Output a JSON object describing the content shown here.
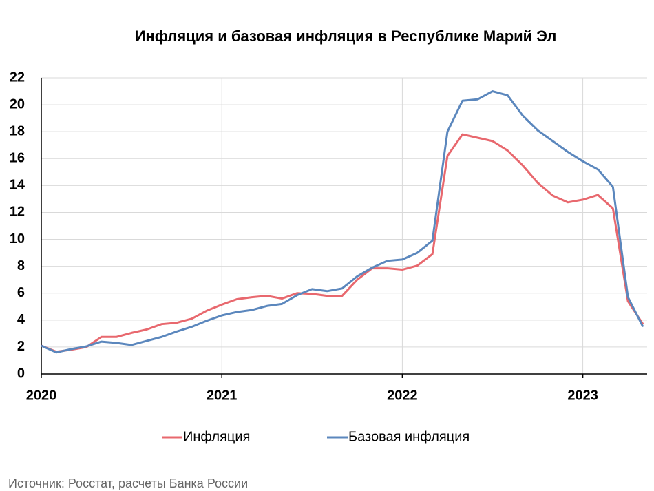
{
  "chart_data": {
    "type": "line",
    "title": "Инфляция и базовая инфляция в Республике Марий Эл",
    "source": "Источник: Росстат, расчеты Банка России",
    "categories": [
      "2020",
      null,
      null,
      null,
      null,
      null,
      null,
      null,
      null,
      null,
      null,
      null,
      "2021",
      null,
      null,
      null,
      null,
      null,
      null,
      null,
      null,
      null,
      null,
      null,
      "2022",
      null,
      null,
      null,
      null,
      null,
      null,
      null,
      null,
      null,
      null,
      null,
      "2023",
      null,
      null,
      null,
      null
    ],
    "series": [
      {
        "name": "Инфляция",
        "color": "#e8686e",
        "values": [
          2.1,
          1.65,
          1.8,
          2.0,
          2.75,
          2.75,
          3.05,
          3.3,
          3.7,
          3.8,
          4.1,
          4.7,
          5.15,
          5.55,
          5.7,
          5.8,
          5.6,
          6.0,
          5.95,
          5.8,
          5.8,
          7.0,
          7.85,
          7.85,
          7.75,
          8.05,
          8.9,
          16.2,
          17.8,
          17.55,
          17.3,
          16.6,
          15.5,
          14.2,
          13.25,
          12.75,
          12.95,
          13.3,
          12.3,
          5.4,
          3.7
        ]
      },
      {
        "name": "Базовая инфляция",
        "color": "#5b87bd",
        "values": [
          2.1,
          1.6,
          1.85,
          2.05,
          2.4,
          2.3,
          2.15,
          2.45,
          2.75,
          3.15,
          3.5,
          3.95,
          4.35,
          4.6,
          4.75,
          5.05,
          5.2,
          5.85,
          6.3,
          6.15,
          6.35,
          7.25,
          7.9,
          8.4,
          8.5,
          9.0,
          9.9,
          18.0,
          20.3,
          20.4,
          21.0,
          20.7,
          19.2,
          18.1,
          17.3,
          16.5,
          15.8,
          15.2,
          13.9,
          5.7,
          3.5
        ]
      }
    ],
    "ylim": [
      0,
      22
    ],
    "yticks": [
      0,
      2,
      4,
      6,
      8,
      10,
      12,
      14,
      16,
      18,
      20,
      22
    ],
    "grid": true,
    "legend": "bottom"
  }
}
